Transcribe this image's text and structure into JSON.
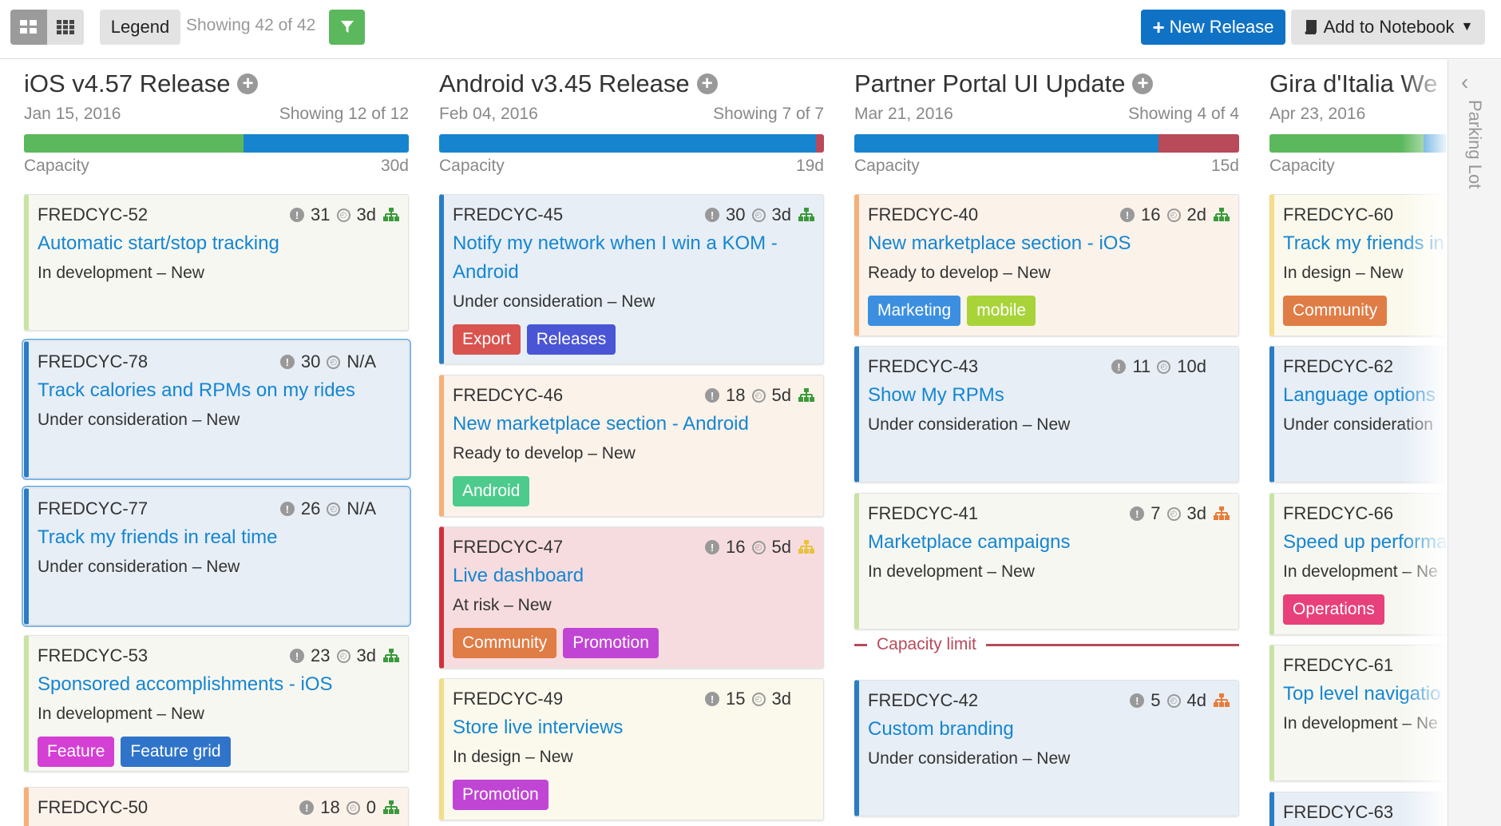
{
  "toolbar": {
    "legend_label": "Legend",
    "showing_text": "Showing 42 of 42",
    "new_release_label": "New Release",
    "add_to_notebook_label": "Add to Notebook"
  },
  "colors": {
    "primary": "#1072c5",
    "green": "#5cb85c",
    "link": "#1486d1",
    "capacity_limit": "#b84a5a"
  },
  "columns": [
    {
      "title": "iOS v4.57 Release",
      "date": "Jan 15, 2016",
      "showing": "Showing 12 of 12",
      "capacity_label": "Capacity",
      "capacity_value": "30d",
      "capacity_segments": [
        {
          "color": "#5cb85c",
          "fraction": 0.57
        },
        {
          "color": "#1784cf",
          "fraction": 0.43
        }
      ],
      "cards": [
        {
          "id": "FREDCYC-52",
          "score": "31",
          "time": "3d",
          "hier": "#3a9a3a",
          "title": "Automatic start/stop tracking",
          "status": "In development – New",
          "tags": [],
          "border": "#c9e3a4",
          "bg": "#f7f7f1",
          "selected": false
        },
        {
          "id": "FREDCYC-78",
          "score": "30",
          "time": "N/A",
          "hier": "",
          "title": "Track calories and RPMs on my rides",
          "status": "Under consideration – New",
          "tags": [],
          "border": "#2a7dc4",
          "bg": "#e7eef6",
          "selected": true
        },
        {
          "id": "FREDCYC-77",
          "score": "26",
          "time": "N/A",
          "hier": "",
          "title": "Track my friends in real time",
          "status": "Under consideration – New",
          "tags": [],
          "border": "#2a7dc4",
          "bg": "#e7eef6",
          "selected": true
        },
        {
          "id": "FREDCYC-53",
          "score": "23",
          "time": "3d",
          "hier": "#3a9a3a",
          "title": "Sponsored accomplishments - iOS",
          "status": "In development – New",
          "tags": [
            {
              "label": "Feature",
              "color": "#d43fd4"
            },
            {
              "label": "Feature grid",
              "color": "#2f74c9"
            }
          ],
          "border": "#c9e3a4",
          "bg": "#f7f7f1",
          "selected": false
        },
        {
          "id": "FREDCYC-50",
          "score": "18",
          "time": "0",
          "hier": "#3a9a3a",
          "title": "",
          "status": "",
          "tags": [],
          "border": "#f5b07a",
          "bg": "#fbf2ea",
          "selected": false
        }
      ]
    },
    {
      "title": "Android v3.45 Release",
      "date": "Feb 04, 2016",
      "showing": "Showing 7 of 7",
      "capacity_label": "Capacity",
      "capacity_value": "19d",
      "capacity_segments": [
        {
          "color": "#1784cf",
          "fraction": 0.98
        },
        {
          "color": "#b84a5a",
          "fraction": 0.02
        }
      ],
      "cards": [
        {
          "id": "FREDCYC-45",
          "score": "30",
          "time": "3d",
          "hier": "#3a9a3a",
          "title": "Notify my network when I win a KOM - Android",
          "status": "Under consideration – New",
          "tags": [
            {
              "label": "Export",
              "color": "#d9534f"
            },
            {
              "label": "Releases",
              "color": "#4a55d6"
            }
          ],
          "border": "#2a7dc4",
          "bg": "#e7eef6",
          "selected": false
        },
        {
          "id": "FREDCYC-46",
          "score": "18",
          "time": "5d",
          "hier": "#3a9a3a",
          "title": "New marketplace section - Android",
          "status": "Ready to develop – New",
          "tags": [
            {
              "label": "Android",
              "color": "#4ccb8c"
            }
          ],
          "border": "#f5b07a",
          "bg": "#fbf2ea",
          "selected": false
        },
        {
          "id": "FREDCYC-47",
          "score": "16",
          "time": "5d",
          "hier": "#e8c23a",
          "title": "Live dashboard",
          "status": "At risk – New",
          "tags": [
            {
              "label": "Community",
              "color": "#e07c45"
            },
            {
              "label": "Promotion",
              "color": "#c145d4"
            }
          ],
          "border": "#d0303c",
          "bg": "#f7dcdf",
          "selected": false
        },
        {
          "id": "FREDCYC-49",
          "score": "15",
          "time": "3d",
          "hier": "",
          "title": "Store live interviews",
          "status": "In design – New",
          "tags": [
            {
              "label": "Promotion",
              "color": "#c145d4"
            }
          ],
          "border": "#f3dd8a",
          "bg": "#fbf9ec",
          "selected": false
        }
      ]
    },
    {
      "title": "Partner Portal UI Update",
      "date": "Mar 21, 2016",
      "showing": "Showing 4 of 4",
      "capacity_label": "Capacity",
      "capacity_value": "15d",
      "capacity_segments": [
        {
          "color": "#1784cf",
          "fraction": 0.79
        },
        {
          "color": "#b84a5a",
          "fraction": 0.21
        }
      ],
      "capacity_limit_label": "Capacity limit",
      "cards": [
        {
          "id": "FREDCYC-40",
          "score": "16",
          "time": "2d",
          "hier": "#3a9a3a",
          "title": "New marketplace section - iOS",
          "status": "Ready to develop – New",
          "tags": [
            {
              "label": "Marketing",
              "color": "#3c8fe0"
            },
            {
              "label": "mobile",
              "color": "#a8d43a"
            }
          ],
          "border": "#f5b07a",
          "bg": "#fbf2ea",
          "selected": false
        },
        {
          "id": "FREDCYC-43",
          "score": "11",
          "time": "10d",
          "hier": "",
          "title": "Show My RPMs",
          "status": "Under consideration – New",
          "tags": [],
          "border": "#2a7dc4",
          "bg": "#e7eef6",
          "selected": false
        },
        {
          "id": "FREDCYC-41",
          "score": "7",
          "time": "3d",
          "hier": "#e87c3a",
          "title": "Marketplace campaigns",
          "status": "In development – New",
          "tags": [],
          "border": "#c9e3a4",
          "bg": "#f7f7f1",
          "selected": false
        },
        {
          "id": "FREDCYC-42",
          "score": "5",
          "time": "4d",
          "hier": "#e87c3a",
          "title": "Custom branding",
          "status": "Under consideration – New",
          "tags": [],
          "border": "#2a7dc4",
          "bg": "#e7eef6",
          "selected": false
        }
      ]
    },
    {
      "title": "Gira d'Italia We",
      "date": "Apr 23, 2016",
      "showing": "",
      "capacity_label": "Capacity",
      "capacity_value": "",
      "capacity_segments": [
        {
          "color": "#5cb85c",
          "fraction": 0.4
        },
        {
          "color": "#1784cf",
          "fraction": 0.6
        }
      ],
      "cards": [
        {
          "id": "FREDCYC-60",
          "score": "",
          "time": "",
          "hier": "",
          "title": "Track my friends in",
          "status": "In design – New",
          "tags": [
            {
              "label": "Community",
              "color": "#e07c45"
            }
          ],
          "border": "#f3dd8a",
          "bg": "#fbf9ec",
          "selected": false
        },
        {
          "id": "FREDCYC-62",
          "score": "",
          "time": "",
          "hier": "",
          "title": "Language options",
          "status": "Under consideration",
          "tags": [],
          "border": "#2a7dc4",
          "bg": "#e7eef6",
          "selected": false
        },
        {
          "id": "FREDCYC-66",
          "score": "",
          "time": "",
          "hier": "",
          "title": "Speed up performa",
          "status": "In development – Ne",
          "tags": [
            {
              "label": "Operations",
              "color": "#e8407a"
            }
          ],
          "border": "#c9e3a4",
          "bg": "#f7f7f1",
          "selected": false
        },
        {
          "id": "FREDCYC-61",
          "score": "",
          "time": "",
          "hier": "",
          "title": "Top level navigatio",
          "status": "In development – Ne",
          "tags": [],
          "border": "#c9e3a4",
          "bg": "#f7f7f1",
          "selected": false
        },
        {
          "id": "FREDCYC-63",
          "score": "",
          "time": "",
          "hier": "",
          "title": "",
          "status": "",
          "tags": [],
          "border": "#2a7dc4",
          "bg": "#e7eef6",
          "selected": false
        }
      ]
    }
  ],
  "parking_lot": {
    "label": "Parking Lot"
  }
}
